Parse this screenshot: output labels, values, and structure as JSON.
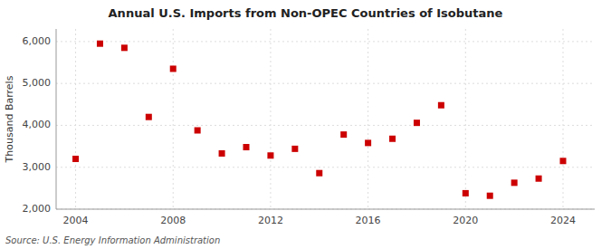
{
  "chart_data": {
    "type": "scatter",
    "title": "Annual U.S. Imports from Non-OPEC Countries of Isobutane",
    "ylabel": "Thousand Barrels",
    "source": "Source: U.S. Energy Information Administration",
    "x": [
      2004,
      2005,
      2006,
      2007,
      2008,
      2009,
      2010,
      2011,
      2012,
      2013,
      2014,
      2015,
      2016,
      2017,
      2018,
      2019,
      2020,
      2021,
      2022,
      2023,
      2024
    ],
    "values": [
      3200,
      5950,
      5850,
      4200,
      5350,
      3880,
      3330,
      3480,
      3280,
      3440,
      2860,
      3780,
      3580,
      3680,
      4060,
      4480,
      2380,
      2320,
      2630,
      2730,
      3150
    ],
    "color": "#cc0000",
    "marker": "square",
    "xlim": [
      2003.2,
      2025.3
    ],
    "ylim": [
      2000,
      6300
    ],
    "xticks": [
      2004,
      2008,
      2012,
      2016,
      2020,
      2024
    ],
    "yticks": [
      {
        "value": 2000,
        "label": "2,000"
      },
      {
        "value": 3000,
        "label": "3,000"
      },
      {
        "value": 4000,
        "label": "4,000"
      },
      {
        "value": 5000,
        "label": "5,000"
      },
      {
        "value": 6000,
        "label": "6,000"
      }
    ],
    "grid": true
  }
}
